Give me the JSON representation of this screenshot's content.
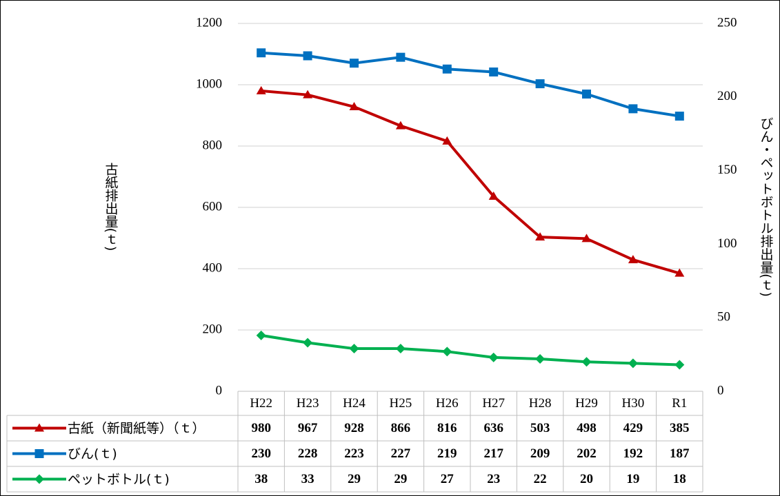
{
  "chart_data": {
    "type": "line",
    "categories": [
      "H22",
      "H23",
      "H24",
      "H25",
      "H26",
      "H27",
      "H28",
      "H29",
      "H30",
      "R1"
    ],
    "ylabel": "古紙排出量(ｔ)",
    "y2label": "びん・ペットボトル排出量(ｔ)",
    "ylim": [
      0,
      1200
    ],
    "yticks": [
      0,
      200,
      400,
      600,
      800,
      1000,
      1200
    ],
    "y2lim": [
      0,
      250
    ],
    "y2ticks": [
      0,
      50,
      100,
      150,
      200,
      250
    ],
    "grid": true,
    "series": [
      {
        "name": "古紙（新聞紙等）（ｔ）",
        "color": "#c00000",
        "marker": "triangle",
        "values": [
          980,
          967,
          928,
          866,
          816,
          636,
          503,
          498,
          429,
          385
        ]
      },
      {
        "name": "びん(ｔ)",
        "color": "#0070c0",
        "marker": "square",
        "axis": "y2",
        "values": [
          230,
          228,
          223,
          227,
          219,
          217,
          209,
          202,
          192,
          187
        ]
      },
      {
        "name": "ペットボトル(ｔ)",
        "color": "#00b050",
        "marker": "diamond",
        "axis": "y2",
        "values": [
          38,
          33,
          29,
          29,
          27,
          23,
          22,
          20,
          19,
          18
        ]
      }
    ]
  }
}
